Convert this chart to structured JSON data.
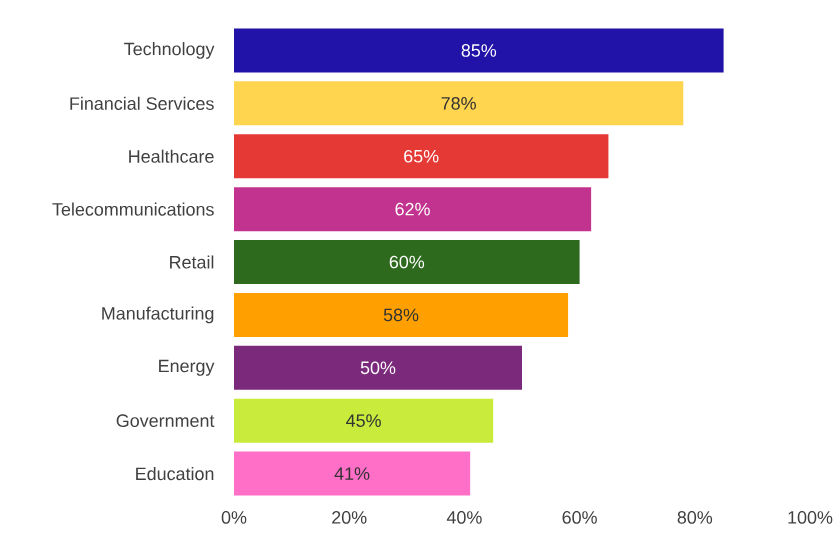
{
  "chart_data": {
    "type": "bar",
    "orientation": "horizontal",
    "categories": [
      "Technology",
      "Financial Services",
      "Healthcare",
      "Telecommunications",
      "Retail",
      "Manufacturing",
      "Energy",
      "Government",
      "Education"
    ],
    "values": [
      85,
      78,
      65,
      62,
      60,
      58,
      50,
      45,
      41
    ],
    "value_labels": [
      "85%",
      "78%",
      "65%",
      "62%",
      "60%",
      "58%",
      "50%",
      "45%",
      "41%"
    ],
    "colors": [
      "#2213a8",
      "#ffd54f",
      "#e53935",
      "#c2338f",
      "#2e6a1e",
      "#ffa000",
      "#7b2a7b",
      "#c8eb3c",
      "#ff6ec7"
    ],
    "xlim": [
      0,
      100
    ],
    "xticks": [
      {
        "value": 0,
        "label": "0%"
      },
      {
        "value": 20,
        "label": "20%"
      },
      {
        "value": 40,
        "label": "40%"
      },
      {
        "value": 60,
        "label": "60%"
      },
      {
        "value": 80,
        "label": "80%"
      },
      {
        "value": 100,
        "label": "100%"
      }
    ],
    "grid": false
  }
}
